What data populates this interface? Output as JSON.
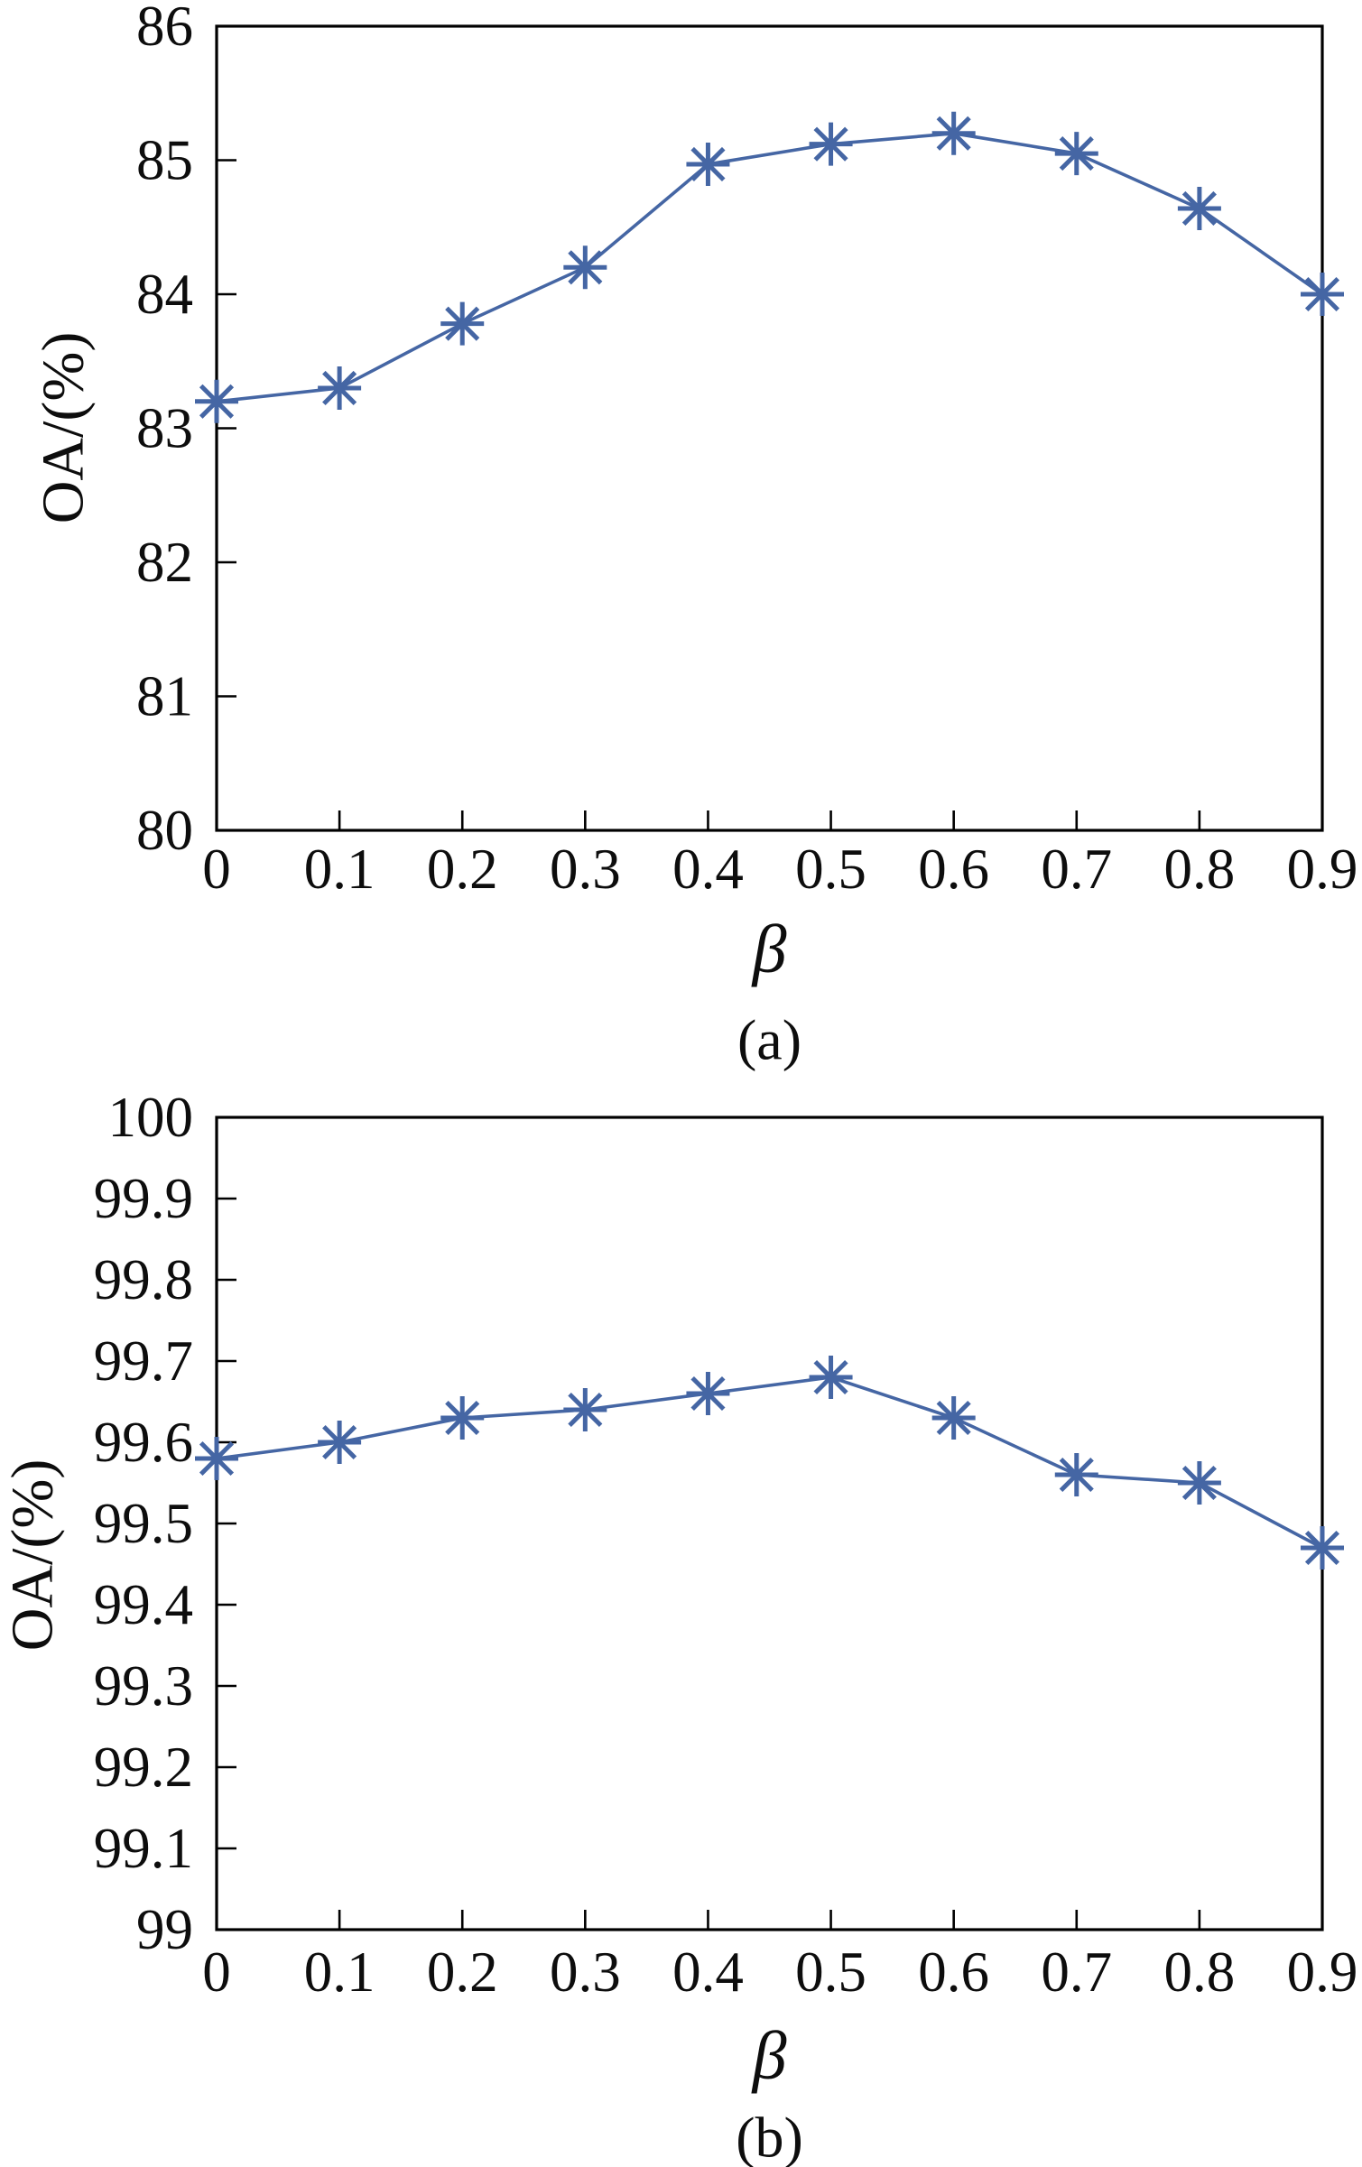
{
  "figure": {
    "background": "#ffffff",
    "series_color": "#4566a4",
    "axis_color": "#000000",
    "text_color": "#0d0d0d"
  },
  "chart_data": [
    {
      "id": "a",
      "type": "line",
      "caption": "(a)",
      "xlabel": "β",
      "ylabel": "OA/(%)",
      "marker": "asterisk",
      "legend": null,
      "grid": false,
      "x": [
        0,
        0.1,
        0.2,
        0.3,
        0.4,
        0.5,
        0.6,
        0.7,
        0.8,
        0.9
      ],
      "xtick_labels": [
        "0",
        "0.1",
        "0.2",
        "0.3",
        "0.4",
        "0.5",
        "0.6",
        "0.7",
        "0.8",
        "0.9"
      ],
      "values": [
        83.2,
        83.3,
        83.78,
        84.2,
        84.97,
        85.12,
        85.2,
        85.05,
        84.64,
        84.0
      ],
      "xlim": [
        0,
        0.9
      ],
      "ylim": [
        80,
        86
      ],
      "ytick_labels": [
        "80",
        "81",
        "82",
        "83",
        "84",
        "85",
        "86"
      ],
      "ytick_values": [
        80,
        81,
        82,
        83,
        84,
        85,
        86
      ]
    },
    {
      "id": "b",
      "type": "line",
      "caption": "(b)",
      "xlabel": "β",
      "ylabel": "OA/(%)",
      "marker": "asterisk",
      "legend": null,
      "grid": false,
      "x": [
        0,
        0.1,
        0.2,
        0.3,
        0.4,
        0.5,
        0.6,
        0.7,
        0.8,
        0.9
      ],
      "xtick_labels": [
        "0",
        "0.1",
        "0.2",
        "0.3",
        "0.4",
        "0.5",
        "0.6",
        "0.7",
        "0.8",
        "0.9"
      ],
      "values": [
        99.58,
        99.6,
        99.63,
        99.64,
        99.66,
        99.68,
        99.63,
        99.56,
        99.55,
        99.47
      ],
      "xlim": [
        0,
        0.9
      ],
      "ylim": [
        99,
        100
      ],
      "ytick_labels": [
        "99",
        "99.1",
        "99.2",
        "99.3",
        "99.4",
        "99.5",
        "99.6",
        "99.7",
        "99.8",
        "99.9",
        "100"
      ],
      "ytick_values": [
        99,
        99.1,
        99.2,
        99.3,
        99.4,
        99.5,
        99.6,
        99.7,
        99.8,
        99.9,
        100
      ]
    }
  ]
}
